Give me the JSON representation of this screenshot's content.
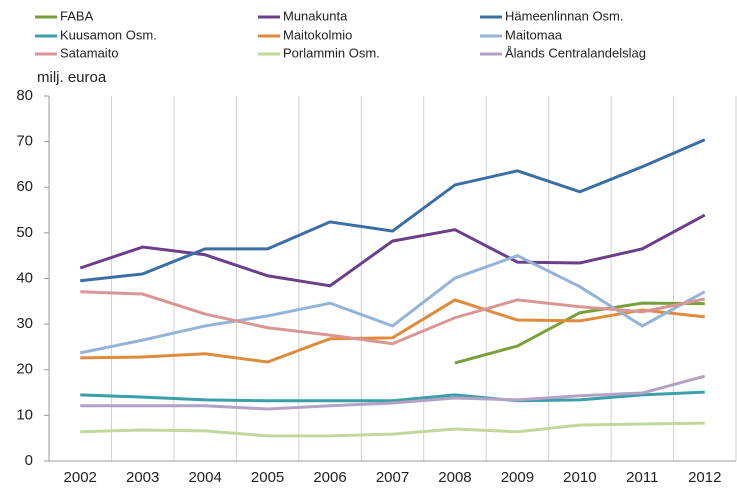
{
  "chart_data": {
    "type": "line",
    "y_label": "milj. euroa",
    "categories": [
      "2002",
      "2003",
      "2004",
      "2005",
      "2006",
      "2007",
      "2008",
      "2009",
      "2010",
      "2011",
      "2012"
    ],
    "ylim": [
      0,
      80
    ],
    "yticks": [
      0,
      10,
      20,
      30,
      40,
      50,
      60,
      70,
      80
    ],
    "grid": true,
    "series": [
      {
        "name": "FABA",
        "color": "#77a03a",
        "values": [
          null,
          null,
          null,
          null,
          null,
          null,
          21.5,
          25.2,
          32.5,
          34.6,
          34.5
        ]
      },
      {
        "name": "Munakunta",
        "color": "#6b3f8a",
        "values": [
          42.3,
          46.9,
          45.2,
          40.6,
          38.4,
          48.2,
          50.7,
          43.6,
          43.4,
          46.5,
          53.9
        ]
      },
      {
        "name": "Hämeenlinnan Osm.",
        "color": "#3a6ea5",
        "values": [
          39.5,
          41.0,
          46.5,
          46.5,
          52.4,
          50.4,
          60.5,
          63.6,
          59.0,
          64.5,
          70.4
        ]
      },
      {
        "name": "Kuusamon Osm.",
        "color": "#3a9fa8",
        "values": [
          14.5,
          14.0,
          13.4,
          13.2,
          13.2,
          13.2,
          14.5,
          13.2,
          13.4,
          14.5,
          15.1
        ]
      },
      {
        "name": "Maitokolmio",
        "color": "#e08a3c",
        "values": [
          22.6,
          22.8,
          23.5,
          21.7,
          26.8,
          27.0,
          35.3,
          30.9,
          30.7,
          33.1,
          31.6
        ]
      },
      {
        "name": "Maitomaa",
        "color": "#93b4d8",
        "values": [
          23.7,
          26.5,
          29.6,
          31.8,
          34.6,
          29.6,
          40.1,
          45.0,
          38.2,
          29.6,
          37.1
        ]
      },
      {
        "name": "Satamaito",
        "color": "#d99694",
        "values": [
          37.1,
          36.6,
          32.2,
          29.2,
          27.6,
          25.7,
          31.4,
          35.3,
          33.8,
          32.7,
          35.5
        ]
      },
      {
        "name": "Porlammin Osm.",
        "color": "#c3d69b",
        "values": [
          6.4,
          6.8,
          6.6,
          5.5,
          5.5,
          5.9,
          7.0,
          6.4,
          7.9,
          8.1,
          8.3
        ]
      },
      {
        "name": "Ålands Centralandelslag",
        "color": "#b3a2c7",
        "values": [
          12.1,
          12.1,
          12.1,
          11.4,
          12.1,
          12.7,
          13.8,
          13.4,
          14.3,
          14.9,
          18.6
        ]
      }
    ]
  }
}
